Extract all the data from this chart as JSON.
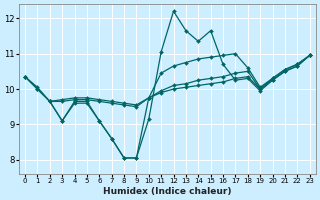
{
  "xlabel": "Humidex (Indice chaleur)",
  "bg_color": "#cceeff",
  "line_color": "#006666",
  "grid_color": "#ffffff",
  "xlim": [
    -0.5,
    23.5
  ],
  "ylim": [
    7.6,
    12.4
  ],
  "yticks": [
    8,
    9,
    10,
    11,
    12
  ],
  "xticks": [
    0,
    1,
    2,
    3,
    4,
    5,
    6,
    7,
    8,
    9,
    10,
    11,
    12,
    13,
    14,
    15,
    16,
    17,
    18,
    19,
    20,
    21,
    22,
    23
  ],
  "lines": [
    {
      "x": [
        0,
        1,
        2,
        3,
        4,
        5,
        6,
        7,
        8,
        9,
        10,
        11,
        12,
        13,
        14,
        15,
        16,
        17,
        18,
        19,
        20,
        21,
        22,
        23
      ],
      "y": [
        10.35,
        10.0,
        9.65,
        9.1,
        9.6,
        9.6,
        9.1,
        8.6,
        8.05,
        8.05,
        9.15,
        11.05,
        12.2,
        11.65,
        11.35,
        11.65,
        10.7,
        10.25,
        10.3,
        9.95,
        10.25,
        10.5,
        10.65,
        10.95
      ]
    },
    {
      "x": [
        0,
        1,
        2,
        3,
        4,
        5,
        6,
        7,
        8,
        9,
        10,
        11,
        12,
        13,
        14,
        15,
        16,
        17,
        18,
        19,
        20,
        21,
        22,
        23
      ],
      "y": [
        10.35,
        10.0,
        9.65,
        9.7,
        9.75,
        9.75,
        9.7,
        9.65,
        9.6,
        9.55,
        9.75,
        9.9,
        10.0,
        10.05,
        10.1,
        10.15,
        10.2,
        10.3,
        10.35,
        10.0,
        10.25,
        10.5,
        10.65,
        10.95
      ]
    },
    {
      "x": [
        0,
        1,
        2,
        3,
        4,
        5,
        6,
        7,
        8,
        9,
        10,
        11,
        12,
        13,
        14,
        15,
        16,
        17,
        18,
        19,
        20,
        21,
        22,
        23
      ],
      "y": [
        10.35,
        10.05,
        9.65,
        9.65,
        9.7,
        9.7,
        9.65,
        9.6,
        9.55,
        9.5,
        9.75,
        9.95,
        10.1,
        10.15,
        10.25,
        10.3,
        10.35,
        10.45,
        10.5,
        10.0,
        10.3,
        10.55,
        10.7,
        10.95
      ]
    },
    {
      "x": [
        2,
        3,
        4,
        5,
        6,
        7,
        8,
        9,
        10,
        11,
        12,
        13,
        14,
        15,
        16,
        17,
        18,
        19,
        20,
        21,
        22,
        23
      ],
      "y": [
        9.65,
        9.1,
        9.65,
        9.65,
        9.1,
        8.6,
        8.05,
        8.05,
        9.75,
        10.45,
        10.65,
        10.75,
        10.85,
        10.9,
        10.95,
        11.0,
        10.6,
        10.05,
        10.3,
        10.55,
        10.7,
        10.95
      ]
    }
  ]
}
